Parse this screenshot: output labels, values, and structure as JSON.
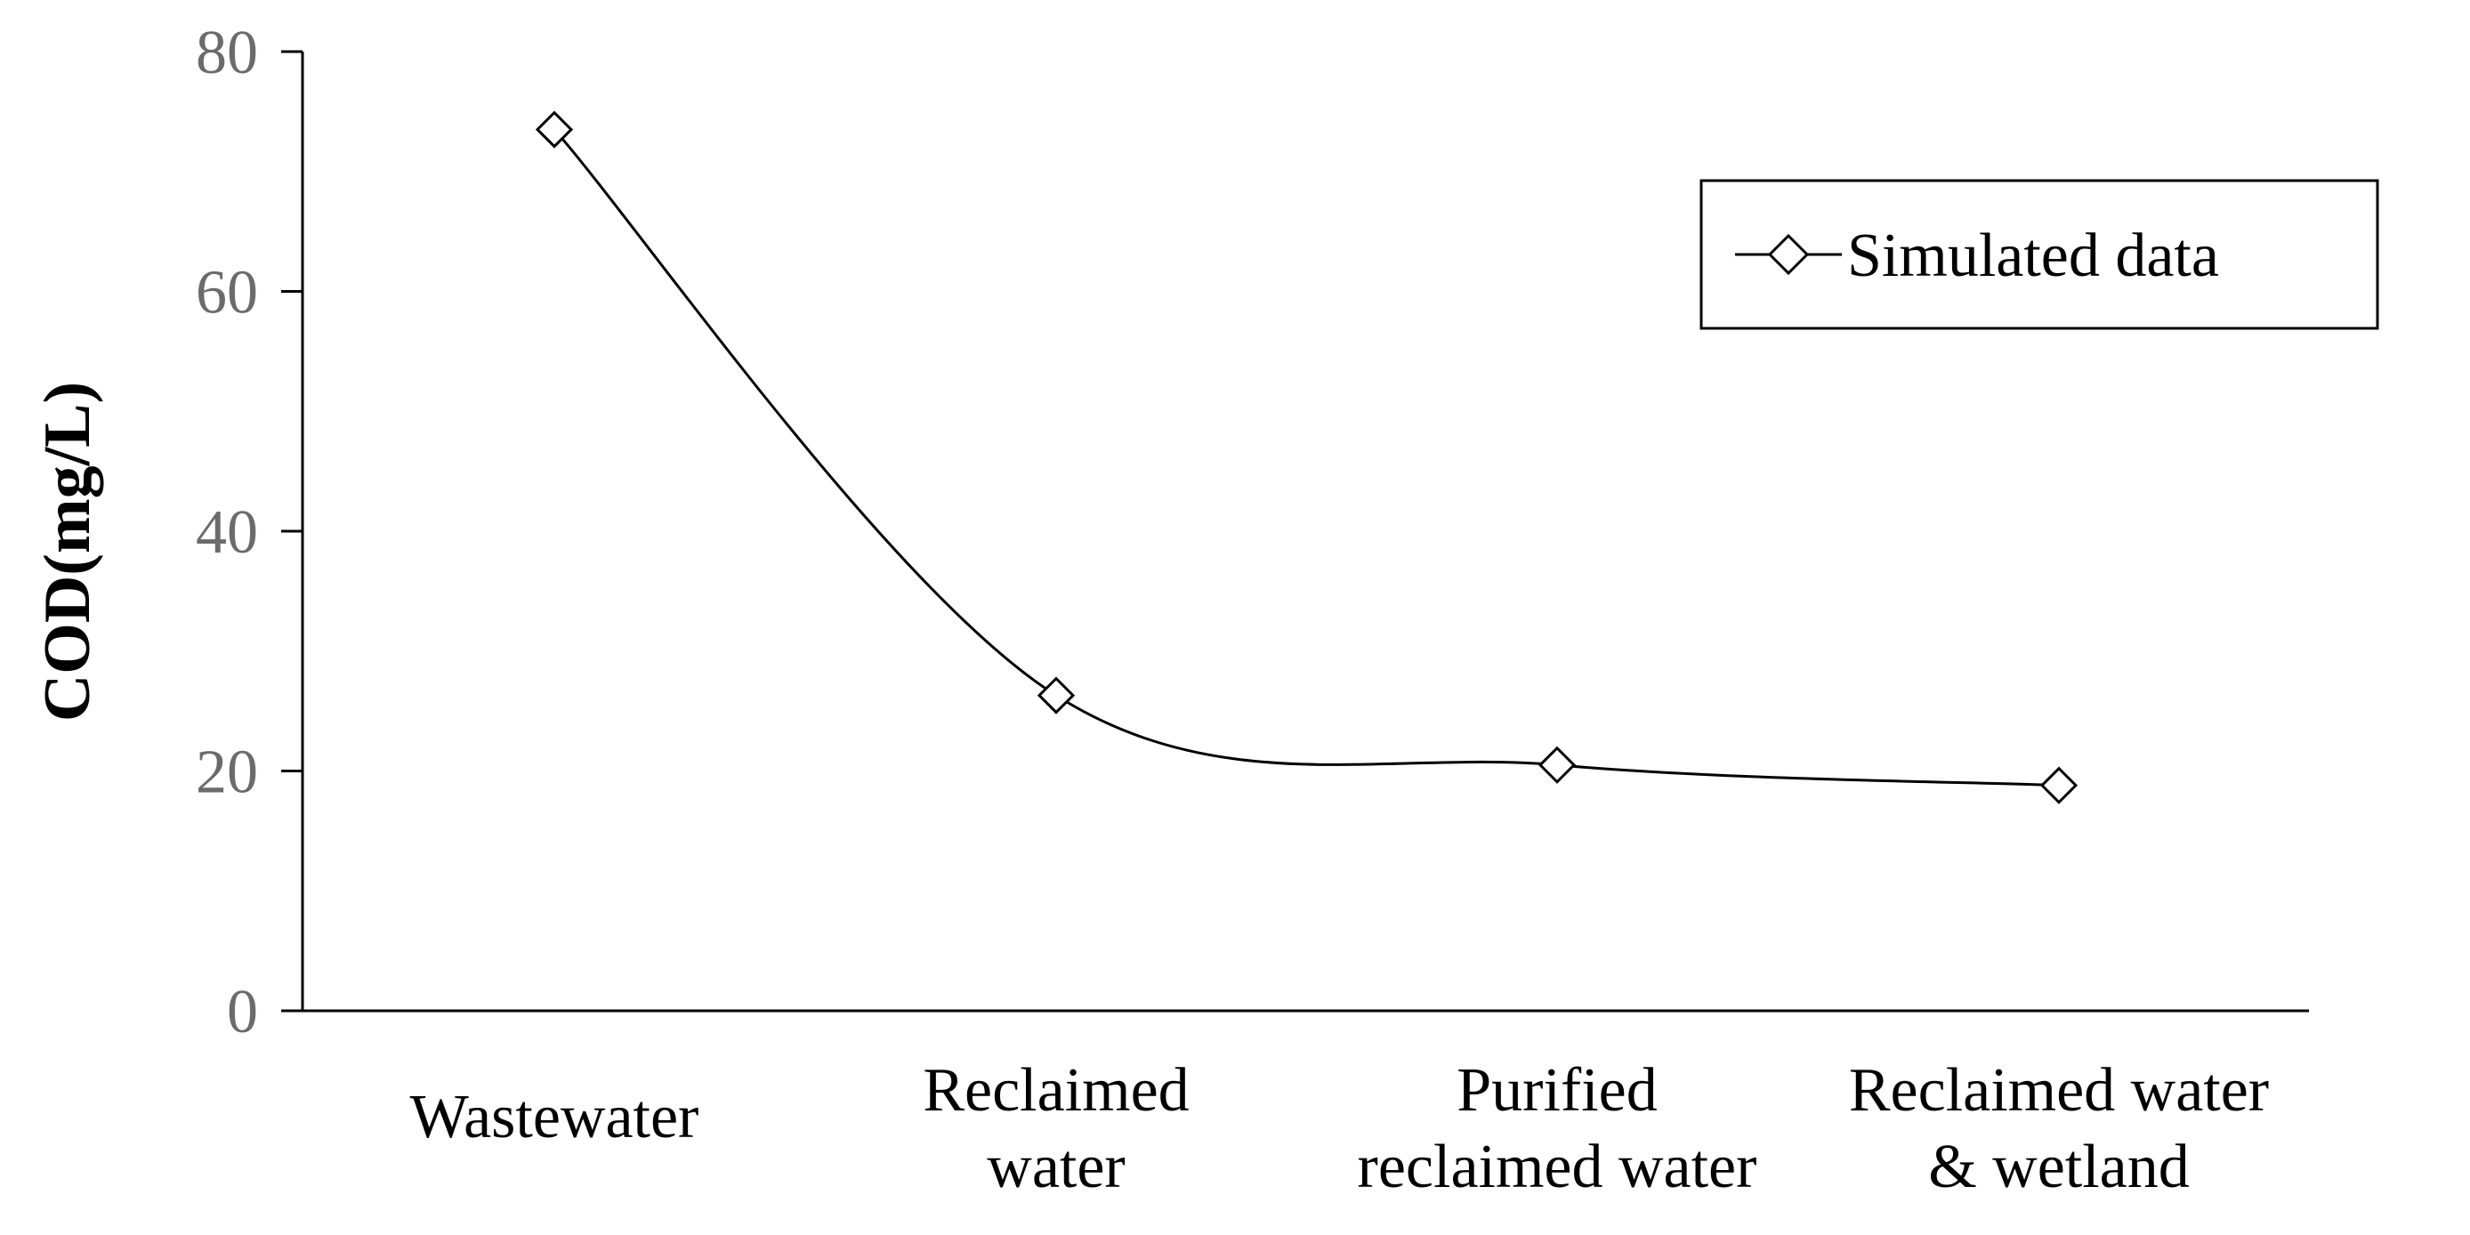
{
  "chart_data": {
    "type": "line",
    "title": "",
    "xlabel": "",
    "ylabel": "COD(mg/L)",
    "ylim": [
      0,
      80
    ],
    "yticks": [
      0,
      20,
      40,
      60,
      80
    ],
    "grid": false,
    "legend_position": "top-right",
    "categories": [
      [
        "Wastewater"
      ],
      [
        "Reclaimed",
        "water"
      ],
      [
        "Purified",
        "reclaimed water"
      ],
      [
        "Reclaimed water",
        "& wetland"
      ]
    ],
    "series": [
      {
        "name": "Simulated data",
        "marker": "diamond",
        "values": [
          73.5,
          26.3,
          20.5,
          18.8
        ]
      }
    ],
    "colors": {
      "line": "#000000",
      "axis": "#000000",
      "ytick_text": "#6b6b6b"
    }
  }
}
